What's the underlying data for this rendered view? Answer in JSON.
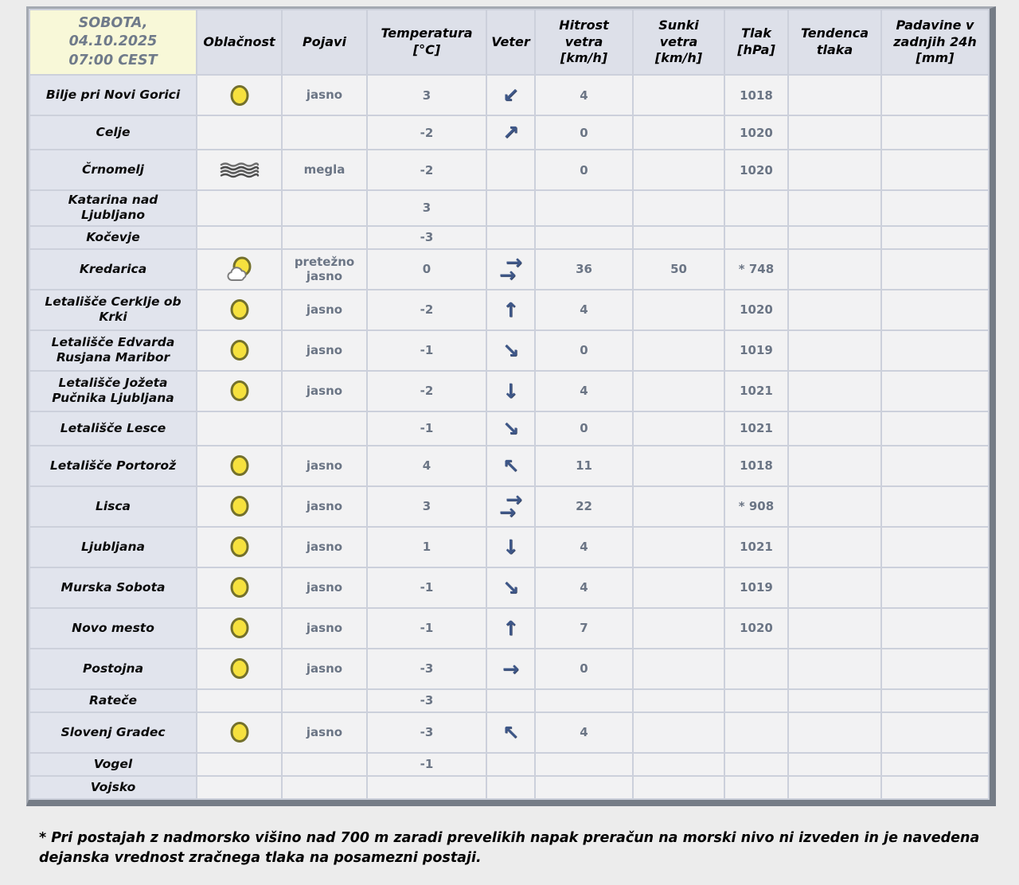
{
  "header": {
    "datetime": "SOBOTA,\n04.10.2025\n07:00 CEST",
    "columns": [
      "Oblačnost",
      "Pojavi",
      "Temperatura\n[°C]",
      "Veter",
      "Hitrost\nvetra\n[km/h]",
      "Sunki\nvetra\n[km/h]",
      "Tlak\n[hPa]",
      "Tendenca\ntlaka",
      "Padavine v\nzadnjih 24h\n[mm]"
    ]
  },
  "rows": [
    {
      "station": "Bilje pri Novi Gorici",
      "cloud_icon": "sun-icon",
      "pojavi": "jasno",
      "temp": "3",
      "wind_icon": "arrow-down-left-icon",
      "speed": "4",
      "gust": "",
      "pressure": "1018",
      "tendency": "",
      "precip": ""
    },
    {
      "station": "Celje",
      "cloud_icon": "",
      "pojavi": "",
      "temp": "-2",
      "wind_icon": "arrow-up-right-icon",
      "speed": "0",
      "gust": "",
      "pressure": "1020",
      "tendency": "",
      "precip": ""
    },
    {
      "station": "Črnomelj",
      "cloud_icon": "fog-icon",
      "pojavi": "megla",
      "temp": "-2",
      "wind_icon": "",
      "speed": "0",
      "gust": "",
      "pressure": "1020",
      "tendency": "",
      "precip": ""
    },
    {
      "station": "Katarina nad\nLjubljano",
      "cloud_icon": "",
      "pojavi": "",
      "temp": "3",
      "wind_icon": "",
      "speed": "",
      "gust": "",
      "pressure": "",
      "tendency": "",
      "precip": ""
    },
    {
      "station": "Kočevje",
      "cloud_icon": "",
      "pojavi": "",
      "temp": "-3",
      "wind_icon": "",
      "speed": "",
      "gust": "",
      "pressure": "",
      "tendency": "",
      "precip": ""
    },
    {
      "station": "Kredarica",
      "cloud_icon": "sun-cloud-icon",
      "pojavi": "pretežno\njasno",
      "temp": "0",
      "wind_icon": "arrow-right-double-icon",
      "speed": "36",
      "gust": "50",
      "pressure": "* 748",
      "tendency": "",
      "precip": ""
    },
    {
      "station": "Letališče Cerklje ob\nKrki",
      "cloud_icon": "sun-icon",
      "pojavi": "jasno",
      "temp": "-2",
      "wind_icon": "arrow-up-icon",
      "speed": "4",
      "gust": "",
      "pressure": "1020",
      "tendency": "",
      "precip": ""
    },
    {
      "station": "Letališče Edvarda\nRusjana Maribor",
      "cloud_icon": "sun-icon",
      "pojavi": "jasno",
      "temp": "-1",
      "wind_icon": "arrow-down-right-icon",
      "speed": "0",
      "gust": "",
      "pressure": "1019",
      "tendency": "",
      "precip": ""
    },
    {
      "station": "Letališče Jožeta\nPučnika Ljubljana",
      "cloud_icon": "sun-icon",
      "pojavi": "jasno",
      "temp": "-2",
      "wind_icon": "arrow-down-icon",
      "speed": "4",
      "gust": "",
      "pressure": "1021",
      "tendency": "",
      "precip": ""
    },
    {
      "station": "Letališče Lesce",
      "cloud_icon": "",
      "pojavi": "",
      "temp": "-1",
      "wind_icon": "arrow-down-right-icon",
      "speed": "0",
      "gust": "",
      "pressure": "1021",
      "tendency": "",
      "precip": ""
    },
    {
      "station": "Letališče Portorož",
      "cloud_icon": "sun-icon",
      "pojavi": "jasno",
      "temp": "4",
      "wind_icon": "arrow-up-left-icon",
      "speed": "11",
      "gust": "",
      "pressure": "1018",
      "tendency": "",
      "precip": ""
    },
    {
      "station": "Lisca",
      "cloud_icon": "sun-icon",
      "pojavi": "jasno",
      "temp": "3",
      "wind_icon": "arrow-right-double-icon",
      "speed": "22",
      "gust": "",
      "pressure": "* 908",
      "tendency": "",
      "precip": ""
    },
    {
      "station": "Ljubljana",
      "cloud_icon": "sun-icon",
      "pojavi": "jasno",
      "temp": "1",
      "wind_icon": "arrow-down-icon",
      "speed": "4",
      "gust": "",
      "pressure": "1021",
      "tendency": "",
      "precip": ""
    },
    {
      "station": "Murska Sobota",
      "cloud_icon": "sun-icon",
      "pojavi": "jasno",
      "temp": "-1",
      "wind_icon": "arrow-down-right-icon",
      "speed": "4",
      "gust": "",
      "pressure": "1019",
      "tendency": "",
      "precip": ""
    },
    {
      "station": "Novo mesto",
      "cloud_icon": "sun-icon",
      "pojavi": "jasno",
      "temp": "-1",
      "wind_icon": "arrow-up-icon",
      "speed": "7",
      "gust": "",
      "pressure": "1020",
      "tendency": "",
      "precip": ""
    },
    {
      "station": "Postojna",
      "cloud_icon": "sun-icon",
      "pojavi": "jasno",
      "temp": "-3",
      "wind_icon": "arrow-right-icon",
      "speed": "0",
      "gust": "",
      "pressure": "",
      "tendency": "",
      "precip": ""
    },
    {
      "station": "Rateče",
      "cloud_icon": "",
      "pojavi": "",
      "temp": "-3",
      "wind_icon": "",
      "speed": "",
      "gust": "",
      "pressure": "",
      "tendency": "",
      "precip": ""
    },
    {
      "station": "Slovenj Gradec",
      "cloud_icon": "sun-icon",
      "pojavi": "jasno",
      "temp": "-3",
      "wind_icon": "arrow-up-left-icon",
      "speed": "4",
      "gust": "",
      "pressure": "",
      "tendency": "",
      "precip": ""
    },
    {
      "station": "Vogel",
      "cloud_icon": "",
      "pojavi": "",
      "temp": "-1",
      "wind_icon": "",
      "speed": "",
      "gust": "",
      "pressure": "",
      "tendency": "",
      "precip": ""
    },
    {
      "station": "Vojsko",
      "cloud_icon": "",
      "pojavi": "",
      "temp": "",
      "wind_icon": "",
      "speed": "",
      "gust": "",
      "pressure": "",
      "tendency": "",
      "precip": ""
    }
  ],
  "footnote": "* Pri postajah z nadmorsko višino nad 700 m zaradi prevelikih napak preračun na morski nivo ni izveden in je navedena dejanska vrednost zračnega tlaka na posamezni postaji.",
  "colors": {
    "page_background": "#ececec",
    "header_cell": "#dde0e9",
    "datetime_cell": "#f8f8d8",
    "station_cell": "#e1e4ed",
    "data_cell": "#f2f2f3",
    "grid_line": "#ccd0db",
    "value_text": "#6b7585",
    "sun_fill": "#f6e13e",
    "sun_stroke": "#73702c",
    "arrow_blue": "#3e5788"
  }
}
